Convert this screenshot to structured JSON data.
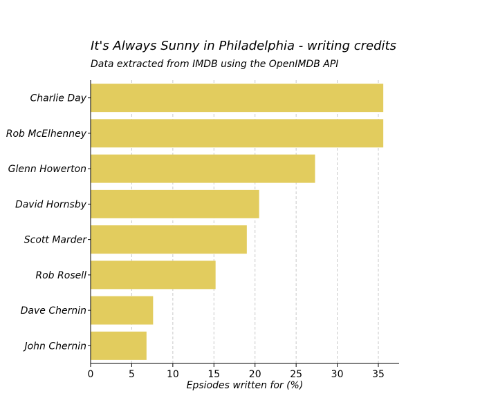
{
  "chart_data": {
    "type": "bar",
    "orientation": "horizontal",
    "title": "It's Always Sunny in Philadelphia - writing credits",
    "subtitle": "Data extracted from IMDB using the OpenIMDB API",
    "xlabel": "Epsiodes written for (%)",
    "ylabel": "",
    "categories": [
      "Charlie Day",
      "Rob McElhenney",
      "Glenn Howerton",
      "David Hornsby",
      "Scott Marder",
      "Rob Rosell",
      "Dave Chernin",
      "John Chernin"
    ],
    "values": [
      35.6,
      35.6,
      27.3,
      20.5,
      19.0,
      15.2,
      7.6,
      6.8
    ],
    "xlim": [
      0,
      37.5
    ],
    "xticks": [
      "0",
      "5",
      "10",
      "15",
      "20",
      "25",
      "30",
      "35"
    ],
    "grid": "vertical dashed",
    "bar_color": "#e2cc5e"
  }
}
